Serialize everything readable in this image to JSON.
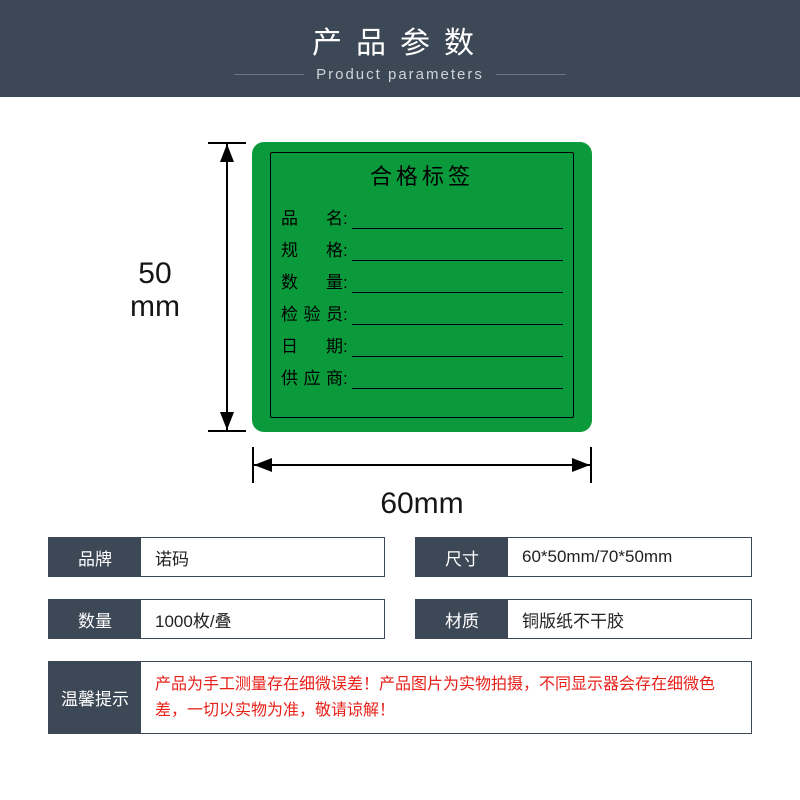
{
  "header": {
    "title_cn": "产品参数",
    "title_en": "Product parameters"
  },
  "colors": {
    "header_bg": "#3c4856",
    "label_bg": "#0a9a3c",
    "notice_text": "#e8201a"
  },
  "dimensions": {
    "height_value": "50",
    "height_unit": "mm",
    "width_text": "60mm"
  },
  "label": {
    "title": "合格标签",
    "fields": [
      {
        "chars": [
          "品",
          "名"
        ]
      },
      {
        "chars": [
          "规",
          "格"
        ]
      },
      {
        "chars": [
          "数",
          "量"
        ]
      },
      {
        "chars": [
          "检",
          "验",
          "员"
        ]
      },
      {
        "chars": [
          "日",
          "期"
        ]
      },
      {
        "chars": [
          "供",
          "应",
          "商"
        ]
      }
    ]
  },
  "specs": [
    {
      "key": "品牌",
      "value": "诺码"
    },
    {
      "key": "尺寸",
      "value": "60*50mm/70*50mm"
    },
    {
      "key": "数量",
      "value": "1000枚/叠"
    },
    {
      "key": "材质",
      "value": "铜版纸不干胶"
    }
  ],
  "notice": {
    "key": "温馨提示",
    "value": "产品为手工测量存在细微误差！产品图片为实物拍摄，不同显示器会存在细微色差，一切以实物为准，敬请谅解！"
  }
}
